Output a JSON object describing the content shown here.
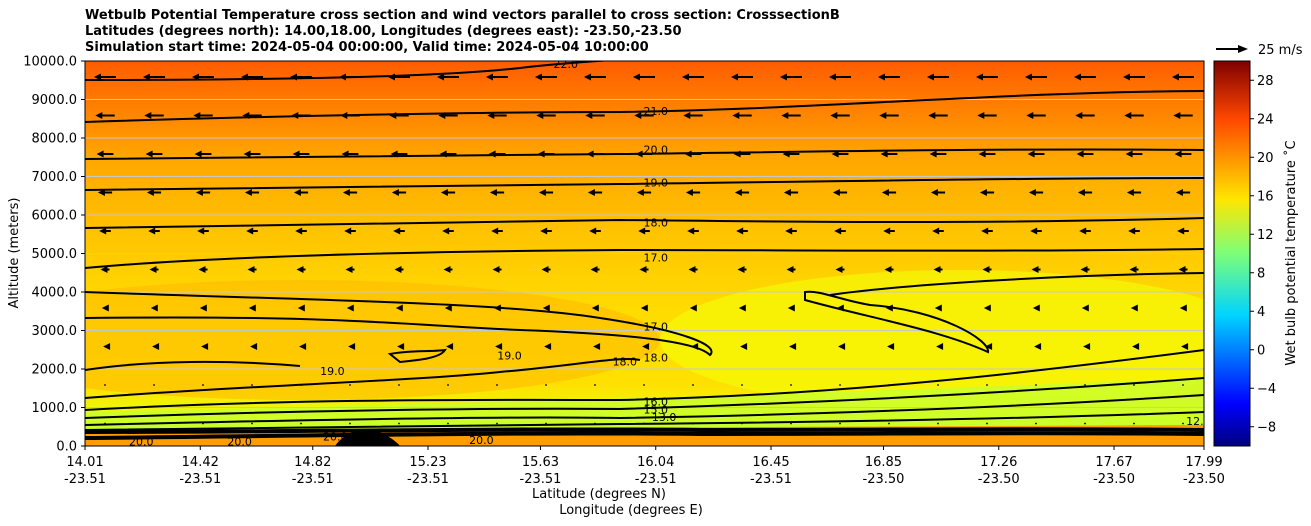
{
  "chart_data": {
    "type": "heatmap",
    "title_lines": [
      "Wetbulb Potential Temperature cross section and wind vectors parallel to cross section: CrosssectionB",
      "Latitudes (degrees north): 14.00,18.00, Longitudes (degrees east): -23.50,-23.50",
      "Simulation start time: 2024-05-04 00:00:00, Valid time: 2024-05-04 10:00:00"
    ],
    "ylabel": "Altitude (meters)",
    "xlabel_lat": "Latitude (degrees N)",
    "xlabel_lon": "Longitude (degrees E)",
    "ylim": [
      0,
      10000
    ],
    "yticks": [
      "0.0",
      "1000.0",
      "2000.0",
      "3000.0",
      "4000.0",
      "5000.0",
      "6000.0",
      "7000.0",
      "8000.0",
      "9000.0",
      "10000.0"
    ],
    "xlim": [
      14.01,
      17.99
    ],
    "xticks_lat": [
      "14.01",
      "14.42",
      "14.82",
      "15.23",
      "15.63",
      "16.04",
      "16.45",
      "16.85",
      "17.26",
      "17.67",
      "17.99"
    ],
    "xticks_lon": [
      "-23.51",
      "-23.51",
      "-23.51",
      "-23.51",
      "-23.51",
      "-23.51",
      "-23.51",
      "-23.50",
      "-23.50",
      "-23.50",
      "-23.50"
    ],
    "colorbar": {
      "label": "Wet bulb potential temperature ˚C",
      "range": [
        -10,
        30
      ],
      "ticks": [
        "−8",
        "−4",
        "0",
        "4",
        "8",
        "12",
        "16",
        "20",
        "24",
        "28"
      ]
    },
    "quiver_key": "25 m/s",
    "contour_labels": [
      {
        "text": "22.0",
        "x": 15.72,
        "y": 9920
      },
      {
        "text": "21.0",
        "x": 16.04,
        "y": 8700
      },
      {
        "text": "20.0",
        "x": 16.04,
        "y": 7700
      },
      {
        "text": "19.0",
        "x": 16.04,
        "y": 6850
      },
      {
        "text": "18.0",
        "x": 16.04,
        "y": 5800
      },
      {
        "text": "17.0",
        "x": 16.04,
        "y": 4900
      },
      {
        "text": "17.0",
        "x": 16.04,
        "y": 3100
      },
      {
        "text": "19.0",
        "x": 14.89,
        "y": 1950
      },
      {
        "text": "19.0",
        "x": 15.52,
        "y": 2350
      },
      {
        "text": "18.0",
        "x": 15.93,
        "y": 2200
      },
      {
        "text": "18.0",
        "x": 16.04,
        "y": 2300
      },
      {
        "text": "16.0",
        "x": 16.04,
        "y": 1150
      },
      {
        "text": "15.0",
        "x": 16.04,
        "y": 950
      },
      {
        "text": "13.0",
        "x": 16.07,
        "y": 750
      },
      {
        "text": "20.0",
        "x": 14.21,
        "y": 120
      },
      {
        "text": "20.0",
        "x": 14.56,
        "y": 120
      },
      {
        "text": "20.0",
        "x": 15.42,
        "y": 150
      },
      {
        "text": "20.0",
        "x": 14.9,
        "y": 250
      },
      {
        "text": "12.0",
        "x": 17.97,
        "y": 650
      }
    ]
  }
}
